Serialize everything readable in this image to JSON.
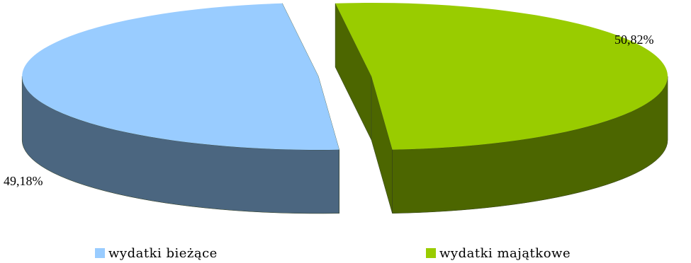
{
  "chart_data": {
    "type": "pie",
    "title": "",
    "series": [
      {
        "name": "wydatki bieżące",
        "value": 49.18,
        "label": "49,18%",
        "top_color": "#99CCFF",
        "side_color": "#4B6680"
      },
      {
        "name": "wydatki majątkowe",
        "value": 50.82,
        "label": "50,82%",
        "top_color": "#99CC00",
        "side_color": "#4C6600"
      }
    ],
    "legend_position": "bottom",
    "style": "3d-exploded"
  }
}
